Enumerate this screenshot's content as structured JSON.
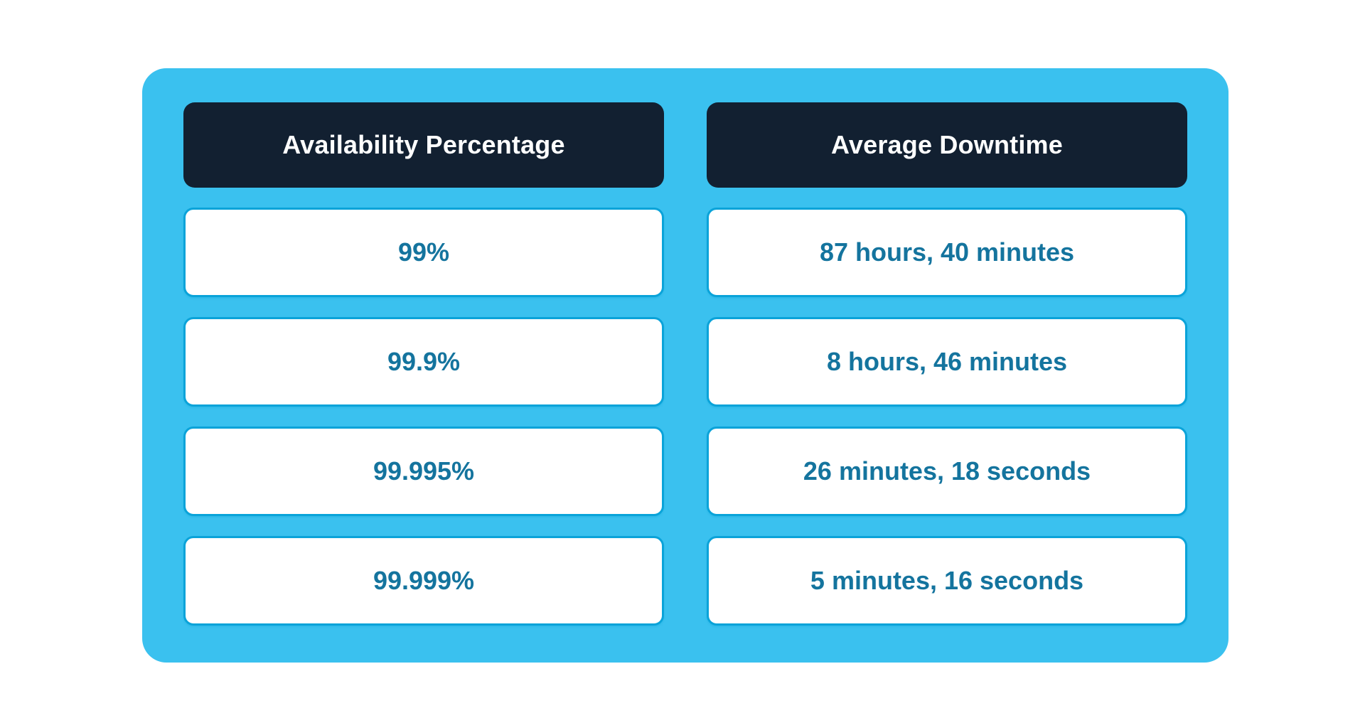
{
  "chart_data": {
    "type": "table",
    "columns": [
      "Availability Percentage",
      "Average Downtime"
    ],
    "rows": [
      [
        "99%",
        "87 hours, 40 minutes"
      ],
      [
        "99.9%",
        "8 hours, 46 minutes"
      ],
      [
        "99.995%",
        "26 minutes, 18 seconds"
      ],
      [
        "99.999%",
        "5 minutes, 16 seconds"
      ]
    ],
    "layout_hints": {
      "orientation": "two-column cards",
      "header_style": "dark rounded bar",
      "cell_style": "white rounded card with cyan border"
    }
  },
  "colors": {
    "page_bg": "#ffffff",
    "container": "#3ac1ef",
    "header_bg": "#122031",
    "header_text": "#ffffff",
    "cell_bg": "#ffffff",
    "cell_border": "#0aa3d9",
    "cell_text": "#14749e"
  }
}
